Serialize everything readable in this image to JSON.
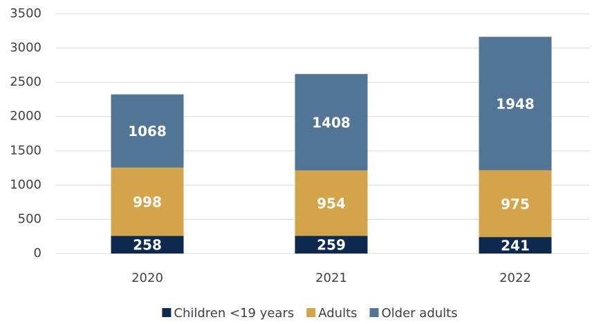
{
  "chart_data": {
    "type": "stacked_bar",
    "categories": [
      "2020",
      "2021",
      "2022"
    ],
    "series": [
      {
        "name": "Children <19 years",
        "color": "#0d2a4e",
        "values": [
          258,
          259,
          241
        ]
      },
      {
        "name": "Adults",
        "color": "#d4a44a",
        "values": [
          998,
          954,
          975
        ]
      },
      {
        "name": "Older adults",
        "color": "#527595",
        "values": [
          1068,
          1408,
          1948
        ]
      }
    ],
    "ylim": [
      0,
      3500
    ],
    "yticks": [
      0,
      500,
      1000,
      1500,
      2000,
      2500,
      3000,
      3500
    ],
    "grid": true,
    "legend": "bottom"
  }
}
